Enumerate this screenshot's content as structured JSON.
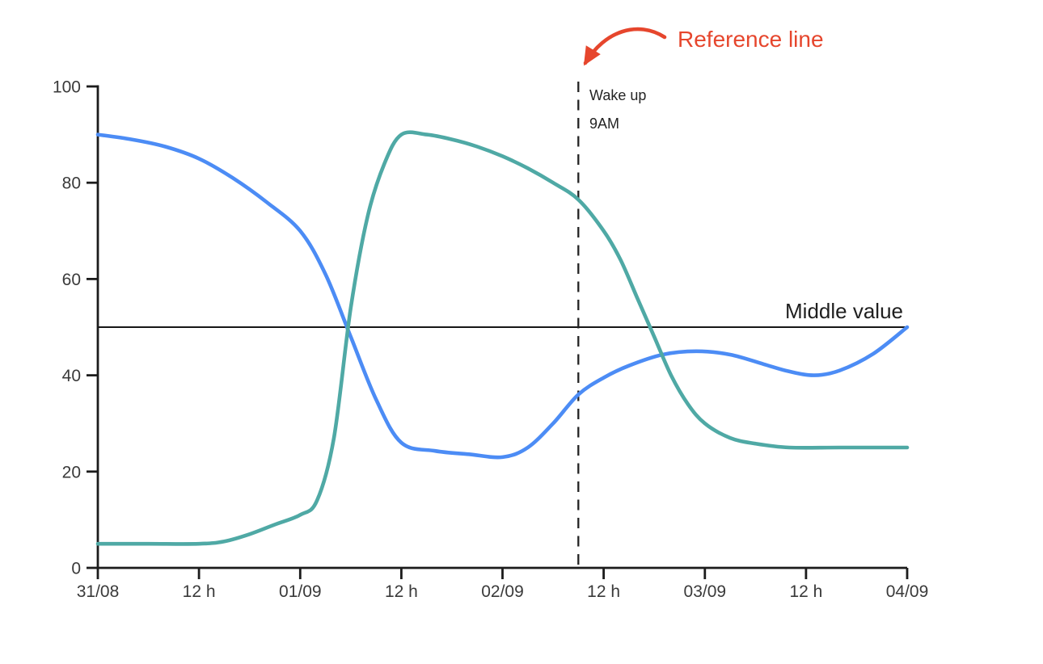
{
  "chart_data": {
    "type": "line",
    "title": "",
    "xlabel": "",
    "ylabel": "",
    "grid": false,
    "legend": "none",
    "x_axis": {
      "tick_labels": [
        "31/08",
        "12 h",
        "01/09",
        "12 h",
        "02/09",
        "12 h",
        "03/09",
        "12 h",
        "04/09"
      ],
      "range_hours": [
        0,
        96
      ],
      "hours_per_tick": 12
    },
    "y_axis": {
      "tick_labels": [
        "0",
        "20",
        "40",
        "60",
        "80",
        "100"
      ],
      "ticks": [
        0,
        20,
        40,
        60,
        80,
        100
      ],
      "range": [
        0,
        100
      ]
    },
    "series": [
      {
        "name": "blue-series",
        "color": "#4C8CF5",
        "points_hours_value": [
          [
            0,
            90
          ],
          [
            4,
            89
          ],
          [
            8,
            87.5
          ],
          [
            12,
            85
          ],
          [
            16,
            81
          ],
          [
            20,
            76
          ],
          [
            24,
            70
          ],
          [
            27,
            61
          ],
          [
            30,
            48
          ],
          [
            33,
            35
          ],
          [
            36,
            26
          ],
          [
            40,
            24.3
          ],
          [
            44,
            23.6
          ],
          [
            48,
            23
          ],
          [
            51,
            25
          ],
          [
            54,
            30
          ],
          [
            57,
            36
          ],
          [
            60,
            39.5
          ],
          [
            63,
            42
          ],
          [
            67,
            44.3
          ],
          [
            71,
            45
          ],
          [
            75,
            44.3
          ],
          [
            79,
            42.3
          ],
          [
            82,
            40.8
          ],
          [
            85,
            40
          ],
          [
            88,
            41
          ],
          [
            92,
            44.5
          ],
          [
            96,
            50
          ]
        ]
      },
      {
        "name": "teal-series",
        "color": "#4FA9A5",
        "points_hours_value": [
          [
            0,
            5
          ],
          [
            6,
            5
          ],
          [
            12,
            5
          ],
          [
            15,
            5.5
          ],
          [
            18,
            7
          ],
          [
            21,
            9
          ],
          [
            24,
            11
          ],
          [
            26,
            14
          ],
          [
            28,
            27
          ],
          [
            30,
            54
          ],
          [
            32,
            73
          ],
          [
            34,
            84
          ],
          [
            36,
            90
          ],
          [
            39,
            90
          ],
          [
            42,
            89
          ],
          [
            45,
            87.5
          ],
          [
            48,
            85.5
          ],
          [
            51,
            83
          ],
          [
            54,
            80
          ],
          [
            57,
            76.5
          ],
          [
            60,
            70
          ],
          [
            62,
            64
          ],
          [
            64,
            56
          ],
          [
            66,
            48
          ],
          [
            68,
            40
          ],
          [
            70,
            34
          ],
          [
            72,
            30
          ],
          [
            75,
            27
          ],
          [
            78,
            25.8
          ],
          [
            82,
            25
          ],
          [
            88,
            25
          ],
          [
            96,
            25
          ]
        ]
      }
    ],
    "reference_lines": {
      "horizontal": {
        "value": 50,
        "label": "Middle value",
        "color": "#161616",
        "style": "solid"
      },
      "vertical": {
        "position_hours": 57,
        "label_line1": "Wake up",
        "label_line2": "9AM",
        "color": "#222222",
        "style": "dashed"
      }
    },
    "annotation": {
      "text": "Reference line",
      "color": "#E6462D",
      "target": "vertical-reference-line"
    },
    "colors": {
      "axis": "#1c1c1c",
      "tick_text": "#3a3a3a",
      "background": "#ffffff"
    }
  }
}
